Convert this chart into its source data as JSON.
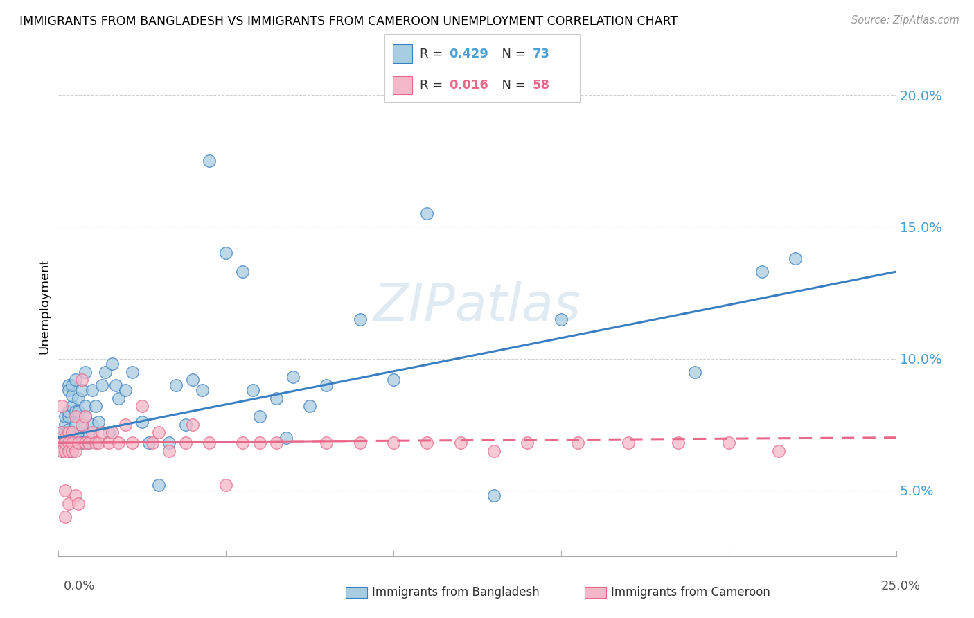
{
  "title": "IMMIGRANTS FROM BANGLADESH VS IMMIGRANTS FROM CAMEROON UNEMPLOYMENT CORRELATION CHART",
  "source": "Source: ZipAtlas.com",
  "ylabel": "Unemployment",
  "xlim": [
    0.0,
    0.25
  ],
  "ylim": [
    0.025,
    0.215
  ],
  "y_ticks": [
    0.05,
    0.1,
    0.15,
    0.2
  ],
  "y_tick_labels": [
    "5.0%",
    "10.0%",
    "15.0%",
    "20.0%"
  ],
  "color_bangladesh": "#a8cce0",
  "color_cameroon": "#f4b8c8",
  "line_color_bangladesh": "#3a7fc1",
  "line_color_cameroon": "#e8688a",
  "watermark": "ZIPatlas",
  "bangladesh_x": [
    0.001,
    0.001,
    0.001,
    0.001,
    0.002,
    0.002,
    0.002,
    0.002,
    0.002,
    0.003,
    0.003,
    0.003,
    0.003,
    0.003,
    0.003,
    0.004,
    0.004,
    0.004,
    0.004,
    0.004,
    0.005,
    0.005,
    0.005,
    0.005,
    0.006,
    0.006,
    0.006,
    0.007,
    0.007,
    0.007,
    0.008,
    0.008,
    0.008,
    0.009,
    0.009,
    0.01,
    0.01,
    0.011,
    0.012,
    0.013,
    0.014,
    0.015,
    0.016,
    0.017,
    0.018,
    0.02,
    0.022,
    0.025,
    0.027,
    0.03,
    0.033,
    0.035,
    0.038,
    0.04,
    0.043,
    0.045,
    0.05,
    0.055,
    0.058,
    0.06,
    0.065,
    0.068,
    0.07,
    0.075,
    0.08,
    0.09,
    0.1,
    0.11,
    0.13,
    0.15,
    0.19,
    0.21,
    0.22
  ],
  "bangladesh_y": [
    0.072,
    0.068,
    0.065,
    0.07,
    0.069,
    0.075,
    0.072,
    0.068,
    0.078,
    0.09,
    0.073,
    0.078,
    0.08,
    0.088,
    0.065,
    0.072,
    0.082,
    0.086,
    0.09,
    0.065,
    0.07,
    0.075,
    0.08,
    0.092,
    0.072,
    0.08,
    0.085,
    0.068,
    0.075,
    0.088,
    0.078,
    0.082,
    0.095,
    0.068,
    0.072,
    0.075,
    0.088,
    0.082,
    0.076,
    0.09,
    0.095,
    0.072,
    0.098,
    0.09,
    0.085,
    0.088,
    0.095,
    0.076,
    0.068,
    0.052,
    0.068,
    0.09,
    0.075,
    0.092,
    0.088,
    0.175,
    0.14,
    0.133,
    0.088,
    0.078,
    0.085,
    0.07,
    0.093,
    0.082,
    0.09,
    0.115,
    0.092,
    0.155,
    0.048,
    0.115,
    0.095,
    0.133,
    0.138
  ],
  "cameroon_x": [
    0.001,
    0.001,
    0.001,
    0.001,
    0.002,
    0.002,
    0.002,
    0.002,
    0.002,
    0.003,
    0.003,
    0.003,
    0.003,
    0.004,
    0.004,
    0.004,
    0.005,
    0.005,
    0.005,
    0.006,
    0.006,
    0.007,
    0.007,
    0.008,
    0.008,
    0.009,
    0.01,
    0.011,
    0.012,
    0.013,
    0.015,
    0.016,
    0.018,
    0.02,
    0.022,
    0.025,
    0.028,
    0.03,
    0.033,
    0.038,
    0.04,
    0.045,
    0.05,
    0.055,
    0.06,
    0.065,
    0.08,
    0.09,
    0.1,
    0.11,
    0.12,
    0.13,
    0.14,
    0.155,
    0.17,
    0.185,
    0.2,
    0.215
  ],
  "cameroon_y": [
    0.072,
    0.068,
    0.065,
    0.082,
    0.07,
    0.065,
    0.068,
    0.05,
    0.04,
    0.072,
    0.068,
    0.065,
    0.045,
    0.072,
    0.065,
    0.068,
    0.078,
    0.065,
    0.048,
    0.068,
    0.045,
    0.075,
    0.092,
    0.068,
    0.078,
    0.068,
    0.072,
    0.068,
    0.068,
    0.072,
    0.068,
    0.072,
    0.068,
    0.075,
    0.068,
    0.082,
    0.068,
    0.072,
    0.065,
    0.068,
    0.075,
    0.068,
    0.052,
    0.068,
    0.068,
    0.068,
    0.068,
    0.068,
    0.068,
    0.068,
    0.068,
    0.065,
    0.068,
    0.068,
    0.068,
    0.068,
    0.068,
    0.065
  ],
  "bang_line_x0": 0.0,
  "bang_line_y0": 0.07,
  "bang_line_x1": 0.25,
  "bang_line_y1": 0.133,
  "cam_line_x0": 0.0,
  "cam_line_y0": 0.068,
  "cam_line_x1": 0.25,
  "cam_line_y1": 0.07,
  "cam_line_dashed_x0": 0.09,
  "cam_line_dashed_x1": 0.25
}
